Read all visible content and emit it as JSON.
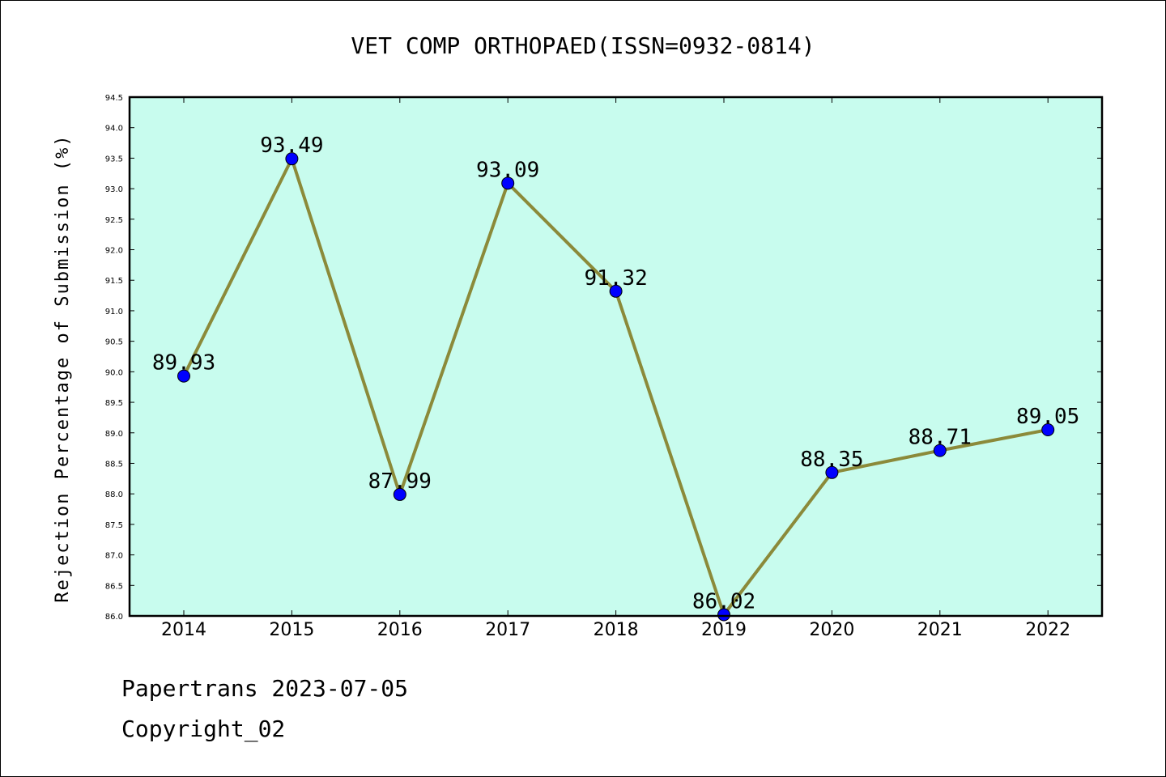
{
  "chart_data": {
    "type": "line",
    "title": "VET COMP ORTHOPAED(ISSN=0932-0814)",
    "xlabel": "",
    "ylabel": "Rejection Percentage of Submission (%)",
    "categories": [
      "2014",
      "2015",
      "2016",
      "2017",
      "2018",
      "2019",
      "2020",
      "2021",
      "2022"
    ],
    "series": [
      {
        "values": [
          89.93,
          93.49,
          87.99,
          93.09,
          91.32,
          86.02,
          88.35,
          88.71,
          89.05
        ],
        "labels": [
          "89.93",
          "93.49",
          "87.99",
          "93.09",
          "91.32",
          "86.02",
          "88.35",
          "88.71",
          "89.05"
        ]
      }
    ],
    "ylim": [
      86.0,
      94.5
    ],
    "yticks": [
      "86.0",
      "86.5",
      "87.0",
      "87.5",
      "88.0",
      "88.5",
      "89.0",
      "89.5",
      "90.0",
      "90.5",
      "91.0",
      "91.5",
      "92.0",
      "92.5",
      "93.0",
      "93.5",
      "94.0",
      "94.5"
    ],
    "grid": false,
    "colors": {
      "plot_background": "#c8fcee",
      "line": "#8b8a3a",
      "marker": "#0000ff"
    }
  },
  "footer": {
    "line1": "Papertrans 2023-07-05",
    "line2": "Copyright_02"
  }
}
